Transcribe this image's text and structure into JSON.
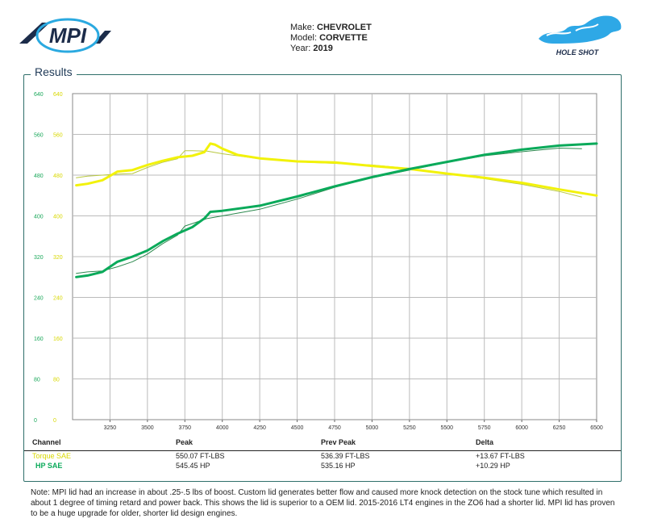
{
  "header": {
    "make_label": "Make:",
    "make": "CHEVROLET",
    "model_label": "Model:",
    "model": "CORVETTE",
    "year_label": "Year:",
    "year": "2019",
    "left_logo_text": "MPI",
    "right_logo_text": "HOLE SHOT"
  },
  "results_title": "Results",
  "colors": {
    "torque": "#f2f20a",
    "hp": "#0aaa5a",
    "grid": "#bbbbbb",
    "frame": "#2f6f6a"
  },
  "chart_data": {
    "type": "line",
    "title": "",
    "xlabel": "",
    "ylabel": "",
    "xlim": [
      3000,
      6500
    ],
    "ylim": [
      0,
      640
    ],
    "x_ticks": [
      3250,
      3500,
      3750,
      4000,
      4250,
      4500,
      4750,
      5000,
      5250,
      5500,
      5750,
      6000,
      6250,
      6500
    ],
    "y_ticks": [
      0,
      80,
      160,
      240,
      320,
      400,
      480,
      560,
      640
    ],
    "grid": true,
    "legend": "none",
    "series": [
      {
        "name": "Torque SAE",
        "color": "#f2f20a",
        "style": "bold",
        "x": [
          3025,
          3100,
          3200,
          3300,
          3400,
          3500,
          3600,
          3700,
          3800,
          3880,
          3920,
          3950,
          4000,
          4100,
          4250,
          4500,
          4750,
          5000,
          5250,
          5500,
          5750,
          6000,
          6250,
          6500
        ],
        "y": [
          460,
          463,
          470,
          487,
          490,
          500,
          508,
          515,
          518,
          525,
          542,
          540,
          532,
          520,
          513,
          507,
          505,
          498,
          492,
          483,
          475,
          465,
          452,
          440
        ]
      },
      {
        "name": "Torque SAE (Prev)",
        "color": "#b8c840",
        "style": "thin",
        "x": [
          3025,
          3100,
          3200,
          3300,
          3400,
          3500,
          3600,
          3700,
          3750,
          3800,
          3900,
          4000,
          4250,
          4500,
          4750,
          5000,
          5250,
          5500,
          5750,
          6000,
          6250,
          6400
        ],
        "y": [
          475,
          478,
          480,
          482,
          483,
          495,
          505,
          512,
          528,
          528,
          527,
          522,
          512,
          506,
          503,
          500,
          493,
          483,
          473,
          462,
          448,
          437
        ]
      },
      {
        "name": "HP SAE",
        "color": "#0aaa5a",
        "style": "bold",
        "x": [
          3025,
          3100,
          3200,
          3300,
          3400,
          3500,
          3600,
          3700,
          3800,
          3880,
          3920,
          4000,
          4250,
          4500,
          4750,
          5000,
          5250,
          5500,
          5750,
          6000,
          6250,
          6500
        ],
        "y": [
          280,
          283,
          290,
          310,
          320,
          332,
          350,
          365,
          378,
          395,
          408,
          410,
          420,
          438,
          458,
          476,
          492,
          506,
          520,
          530,
          538,
          542
        ]
      },
      {
        "name": "HP SAE (Prev)",
        "color": "#2e8a50",
        "style": "thin",
        "x": [
          3025,
          3100,
          3200,
          3300,
          3400,
          3500,
          3600,
          3700,
          3750,
          3800,
          3900,
          4000,
          4250,
          4500,
          4750,
          5000,
          5250,
          5500,
          5750,
          6000,
          6250,
          6400
        ],
        "y": [
          287,
          290,
          292,
          300,
          310,
          325,
          345,
          362,
          380,
          385,
          395,
          400,
          413,
          433,
          456,
          475,
          490,
          505,
          518,
          526,
          533,
          532
        ]
      }
    ]
  },
  "table": {
    "headers": {
      "channel": "Channel",
      "peak": "Peak",
      "prev_peak": "Prev Peak",
      "delta": "Delta"
    },
    "rows": [
      {
        "channel": "Torque SAE",
        "peak": "550.07 FT-LBS",
        "prev_peak": "536.39 FT-LBS",
        "delta": "+13.67 FT-LBS",
        "color": "#d8d800"
      },
      {
        "channel": "HP SAE",
        "peak": "545.45 HP",
        "prev_peak": "535.16 HP",
        "delta": "+10.29 HP",
        "color": "#0aaa5a"
      }
    ]
  },
  "note": "Note: MPI lid had an increase in about .25-.5 lbs of boost. Custom lid generates better flow and caused more knock detection on the stock tune which resulted in about 1 degree of timing retard and power back. This shows the lid is superior to a OEM lid. 2015-2016 LT4 engines in the ZO6 had a shorter lid.  MPI lid has proven to be a huge upgrade for older, shorter lid design engines."
}
